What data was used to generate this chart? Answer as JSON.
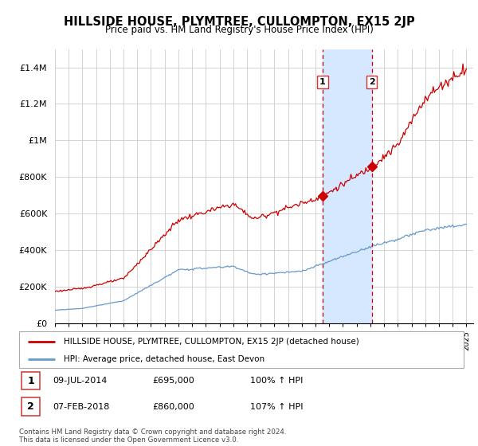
{
  "title": "HILLSIDE HOUSE, PLYMTREE, CULLOMPTON, EX15 2JP",
  "subtitle": "Price paid vs. HM Land Registry's House Price Index (HPI)",
  "legend_label_red": "HILLSIDE HOUSE, PLYMTREE, CULLOMPTON, EX15 2JP (detached house)",
  "legend_label_blue": "HPI: Average price, detached house, East Devon",
  "sale1_date": "09-JUL-2014",
  "sale1_price": "£695,000",
  "sale1_hpi": "100% ↑ HPI",
  "sale1_year": 2014.52,
  "sale1_value": 695000,
  "sale2_date": "07-FEB-2018",
  "sale2_price": "£860,000",
  "sale2_hpi": "107% ↑ HPI",
  "sale2_year": 2018.1,
  "sale2_value": 860000,
  "footer": "Contains HM Land Registry data © Crown copyright and database right 2024.\nThis data is licensed under the Open Government Licence v3.0.",
  "ylim": [
    0,
    1500000
  ],
  "yticks": [
    0,
    200000,
    400000,
    600000,
    800000,
    1000000,
    1200000,
    1400000
  ],
  "ytick_labels": [
    "£0",
    "£200K",
    "£400K",
    "£600K",
    "£800K",
    "£1M",
    "£1.2M",
    "£1.4M"
  ],
  "red_color": "#cc0000",
  "blue_color": "#6699cc",
  "shade_color": "#d6e8ff",
  "grid_color": "#cccccc",
  "xlim_start": 1995,
  "xlim_end": 2025.5
}
